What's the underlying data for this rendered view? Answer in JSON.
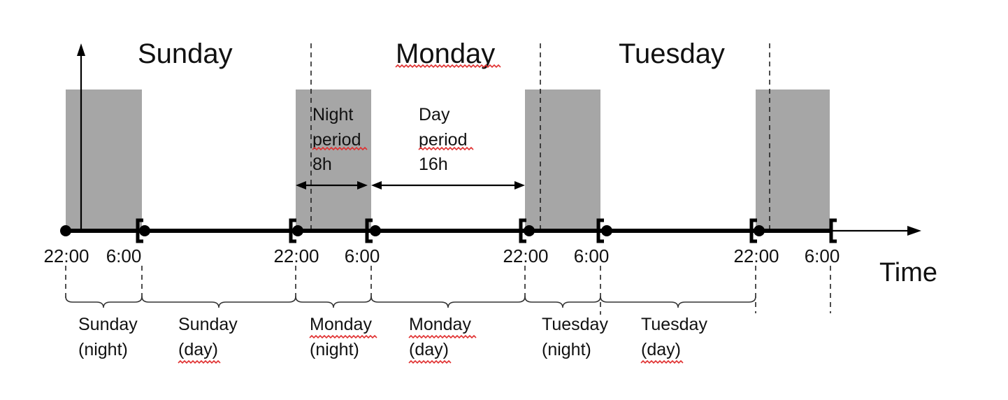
{
  "days": [
    "Sunday",
    "Monday",
    "Tuesday"
  ],
  "ticks": [
    "22:00",
    "6:00",
    "22:00",
    "6:00",
    "22:00",
    "6:00",
    "22:00",
    "6:00"
  ],
  "axis_label": "Time",
  "night_annotation": {
    "line1": "Night",
    "line2": "period",
    "line3": "8h"
  },
  "day_annotation": {
    "line1": "Day",
    "line2": "period",
    "line3": "16h"
  },
  "segments": [
    {
      "name": "Sunday",
      "part": "(night)"
    },
    {
      "name": "Sunday",
      "part": "(day)"
    },
    {
      "name": "Monday",
      "part": "(night)"
    },
    {
      "name": "Monday",
      "part": "(day)"
    },
    {
      "name": "Tuesday",
      "part": "(night)"
    },
    {
      "name": "Tuesday",
      "part": "(day)"
    }
  ],
  "colors": {
    "night_shade": "#a6a6a6",
    "spellcheck_underline": "#e03030"
  }
}
